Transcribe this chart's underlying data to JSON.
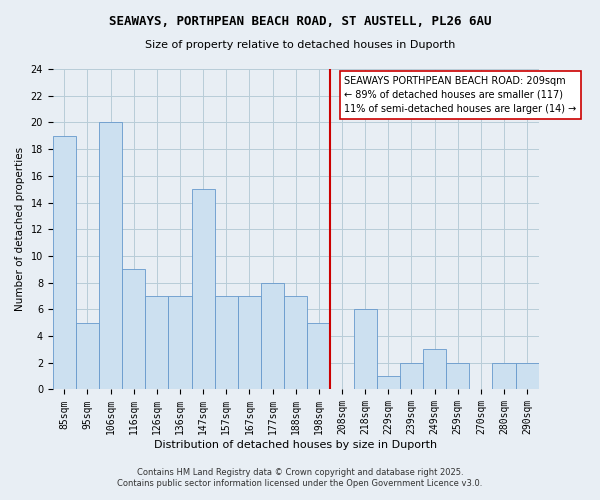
{
  "title": "SEAWAYS, PORTHPEAN BEACH ROAD, ST AUSTELL, PL26 6AU",
  "subtitle": "Size of property relative to detached houses in Duporth",
  "xlabel": "Distribution of detached houses by size in Duporth",
  "ylabel": "Number of detached properties",
  "bar_labels": [
    "85sqm",
    "95sqm",
    "106sqm",
    "116sqm",
    "126sqm",
    "136sqm",
    "147sqm",
    "157sqm",
    "167sqm",
    "177sqm",
    "188sqm",
    "198sqm",
    "208sqm",
    "218sqm",
    "229sqm",
    "239sqm",
    "249sqm",
    "259sqm",
    "270sqm",
    "280sqm",
    "290sqm"
  ],
  "bar_values": [
    19,
    5,
    20,
    9,
    7,
    7,
    15,
    7,
    7,
    8,
    7,
    5,
    0,
    6,
    1,
    2,
    3,
    2,
    0,
    2,
    2
  ],
  "bar_color": "#cce0f0",
  "bar_edgecolor": "#6699cc",
  "vline_color": "#cc0000",
  "annotation_text": "SEAWAYS PORTHPEAN BEACH ROAD: 209sqm\n← 89% of detached houses are smaller (117)\n11% of semi-detached houses are larger (14) →",
  "annotation_box_facecolor": "white",
  "annotation_box_edgecolor": "#cc0000",
  "ylim": [
    0,
    24
  ],
  "yticks": [
    0,
    2,
    4,
    6,
    8,
    10,
    12,
    14,
    16,
    18,
    20,
    22,
    24
  ],
  "footnote1": "Contains HM Land Registry data © Crown copyright and database right 2025.",
  "footnote2": "Contains public sector information licensed under the Open Government Licence v3.0.",
  "bg_color": "#e8eef4",
  "plot_bg_color": "#e8eef4",
  "grid_color": "#b8ccd8",
  "title_fontsize": 9,
  "subtitle_fontsize": 8,
  "xlabel_fontsize": 8,
  "ylabel_fontsize": 7.5,
  "tick_fontsize": 7,
  "annotation_fontsize": 7,
  "footnote_fontsize": 6
}
